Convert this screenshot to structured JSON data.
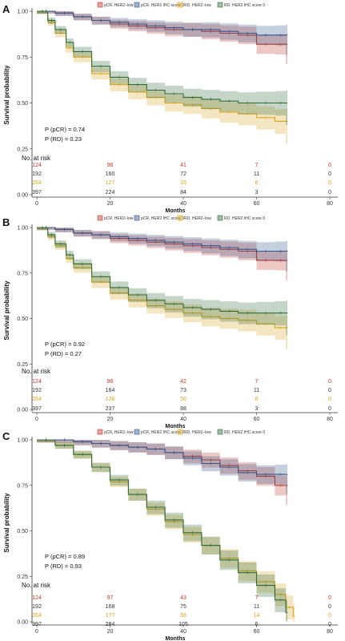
{
  "chart_data": [
    {
      "type": "line",
      "panel_label": "A",
      "ylabel": "Survival probability",
      "xlabel": "Months",
      "xlim": [
        0,
        80
      ],
      "ylim": [
        0,
        1
      ],
      "xticks": [
        "0",
        "20",
        "40",
        "60",
        "80"
      ],
      "yticks": [
        "0.00",
        "0.25",
        "0.50",
        "0.75",
        "1.00"
      ],
      "legend_position": "top",
      "series": [
        {
          "name": "pCR, HER2−low",
          "color": "#c0392b",
          "x": [
            0,
            5,
            10,
            15,
            20,
            25,
            30,
            35,
            40,
            45,
            50,
            55,
            60,
            65,
            68
          ],
          "y": [
            1.0,
            0.99,
            0.97,
            0.95,
            0.93,
            0.92,
            0.91,
            0.9,
            0.9,
            0.89,
            0.88,
            0.87,
            0.82,
            0.82,
            0.82
          ]
        },
        {
          "name": "pCR, HER2 IHC score 0",
          "color": "#34548a",
          "x": [
            0,
            5,
            10,
            15,
            20,
            25,
            30,
            35,
            40,
            45,
            50,
            55,
            60,
            65,
            68
          ],
          "y": [
            1.0,
            0.99,
            0.97,
            0.95,
            0.94,
            0.93,
            0.92,
            0.91,
            0.9,
            0.9,
            0.89,
            0.88,
            0.87,
            0.87,
            0.87
          ]
        },
        {
          "name": "RD, HER2−low",
          "color": "#d9a521",
          "x": [
            0,
            3,
            5,
            8,
            10,
            15,
            20,
            25,
            30,
            35,
            40,
            45,
            50,
            55,
            60,
            65,
            68
          ],
          "y": [
            1.0,
            0.94,
            0.88,
            0.8,
            0.75,
            0.66,
            0.6,
            0.56,
            0.53,
            0.5,
            0.49,
            0.47,
            0.45,
            0.44,
            0.42,
            0.4,
            0.4
          ]
        },
        {
          "name": "RD, HER2 IHC score 0",
          "color": "#2f6b3a",
          "x": [
            0,
            3,
            5,
            8,
            10,
            15,
            20,
            25,
            30,
            35,
            40,
            45,
            50,
            55,
            60,
            65,
            68
          ],
          "y": [
            1.0,
            0.95,
            0.9,
            0.83,
            0.78,
            0.7,
            0.64,
            0.6,
            0.57,
            0.55,
            0.53,
            0.52,
            0.51,
            0.5,
            0.5,
            0.5,
            0.5
          ]
        }
      ],
      "annotations": [
        "P (pCR) = 0.74",
        "P (RD) = 0.23"
      ],
      "risk_table": {
        "title": "No. at risk",
        "times": [
          0,
          20,
          40,
          60,
          80
        ],
        "rows": [
          {
            "color": "#c0392b",
            "values": [
              "124",
              "96",
              "41",
              "7",
              "0"
            ]
          },
          {
            "color": "#333333",
            "values": [
              "192",
              "160",
              "72",
              "11",
              "0"
            ]
          },
          {
            "color": "#d9a521",
            "values": [
              "264",
              "127",
              "33",
              "6",
              "0"
            ]
          },
          {
            "color": "#333333",
            "values": [
              "397",
              "224",
              "84",
              "3",
              "0"
            ]
          }
        ]
      }
    },
    {
      "type": "line",
      "panel_label": "B",
      "ylabel": "Survival probability",
      "xlabel": "Months",
      "xlim": [
        0,
        80
      ],
      "ylim": [
        0,
        1
      ],
      "xticks": [
        "0",
        "20",
        "40",
        "60",
        "80"
      ],
      "yticks": [
        "0.00",
        "0.25",
        "0.50",
        "0.75",
        "1.00"
      ],
      "legend_position": "top",
      "series": [
        {
          "name": "pCR, HER2−low",
          "color": "#c0392b",
          "x": [
            0,
            5,
            10,
            15,
            20,
            25,
            30,
            35,
            40,
            45,
            50,
            55,
            60,
            65,
            68
          ],
          "y": [
            1.0,
            0.99,
            0.97,
            0.96,
            0.94,
            0.93,
            0.92,
            0.91,
            0.9,
            0.89,
            0.88,
            0.87,
            0.82,
            0.82,
            0.82
          ]
        },
        {
          "name": "pCR, HER2 IHC score 0",
          "color": "#34548a",
          "x": [
            0,
            5,
            10,
            15,
            20,
            25,
            30,
            35,
            40,
            45,
            50,
            55,
            60,
            65,
            68
          ],
          "y": [
            1.0,
            0.99,
            0.97,
            0.96,
            0.95,
            0.94,
            0.93,
            0.92,
            0.91,
            0.9,
            0.89,
            0.88,
            0.87,
            0.87,
            0.87
          ]
        },
        {
          "name": "RD, HER2−low",
          "color": "#d9a521",
          "x": [
            0,
            3,
            5,
            8,
            10,
            15,
            20,
            25,
            30,
            35,
            40,
            45,
            50,
            55,
            60,
            65,
            68
          ],
          "y": [
            1.0,
            0.95,
            0.9,
            0.83,
            0.78,
            0.7,
            0.64,
            0.6,
            0.57,
            0.55,
            0.53,
            0.51,
            0.5,
            0.49,
            0.47,
            0.45,
            0.45
          ]
        },
        {
          "name": "RD, HER2 IHC score 0",
          "color": "#2f6b3a",
          "x": [
            0,
            3,
            5,
            8,
            10,
            15,
            20,
            25,
            30,
            35,
            40,
            45,
            50,
            55,
            60,
            65,
            68
          ],
          "y": [
            1.0,
            0.96,
            0.91,
            0.85,
            0.8,
            0.73,
            0.67,
            0.63,
            0.6,
            0.58,
            0.56,
            0.55,
            0.54,
            0.53,
            0.53,
            0.53,
            0.53
          ]
        }
      ],
      "annotations": [
        "P (pCR) = 0.92",
        "P (RD) = 0.27"
      ],
      "risk_table": {
        "title": "No. at risk",
        "times": [
          0,
          20,
          40,
          60,
          80
        ],
        "rows": [
          {
            "color": "#c0392b",
            "values": [
              "124",
              "96",
              "42",
              "7",
              "0"
            ]
          },
          {
            "color": "#333333",
            "values": [
              "192",
              "164",
              "73",
              "11",
              "0"
            ]
          },
          {
            "color": "#d9a521",
            "values": [
              "264",
              "138",
              "50",
              "8",
              "0"
            ]
          },
          {
            "color": "#333333",
            "values": [
              "397",
              "237",
              "88",
              "3",
              "0"
            ]
          }
        ]
      }
    },
    {
      "type": "line",
      "panel_label": "C",
      "ylabel": "Survival probability",
      "xlabel": "Months",
      "xlim": [
        0,
        80
      ],
      "ylim": [
        0,
        1
      ],
      "xticks": [
        "0",
        "20",
        "40",
        "60",
        "80"
      ],
      "yticks": [
        "0.00",
        "0.25",
        "0.50",
        "0.75",
        "1.00"
      ],
      "legend_position": "top",
      "series": [
        {
          "name": "pCR, HER2−low",
          "color": "#c0392b",
          "x": [
            0,
            5,
            10,
            15,
            20,
            25,
            30,
            35,
            40,
            45,
            50,
            55,
            60,
            65,
            68
          ],
          "y": [
            1.0,
            1.0,
            0.99,
            0.98,
            0.97,
            0.96,
            0.95,
            0.93,
            0.91,
            0.89,
            0.86,
            0.83,
            0.8,
            0.75,
            0.75
          ]
        },
        {
          "name": "pCR, HER2 IHC score 0",
          "color": "#34548a",
          "x": [
            0,
            5,
            10,
            15,
            20,
            25,
            30,
            35,
            40,
            45,
            50,
            55,
            60,
            65,
            68
          ],
          "y": [
            1.0,
            1.0,
            0.99,
            0.98,
            0.97,
            0.96,
            0.95,
            0.93,
            0.9,
            0.87,
            0.85,
            0.82,
            0.81,
            0.81,
            0.81
          ]
        },
        {
          "name": "RD, HER2−low",
          "color": "#d9a521",
          "x": [
            0,
            5,
            10,
            15,
            20,
            25,
            30,
            35,
            40,
            45,
            50,
            55,
            60,
            65,
            68,
            70
          ],
          "y": [
            1.0,
            0.97,
            0.92,
            0.85,
            0.77,
            0.7,
            0.62,
            0.55,
            0.48,
            0.42,
            0.35,
            0.28,
            0.22,
            0.15,
            0.08,
            0.03
          ]
        },
        {
          "name": "RD, HER2 IHC score 0",
          "color": "#2f6b3a",
          "x": [
            0,
            5,
            10,
            15,
            20,
            25,
            30,
            35,
            40,
            45,
            50,
            55,
            60,
            65,
            68
          ],
          "y": [
            1.0,
            0.97,
            0.92,
            0.85,
            0.78,
            0.7,
            0.63,
            0.56,
            0.49,
            0.42,
            0.34,
            0.27,
            0.2,
            0.12,
            0.05
          ]
        }
      ],
      "annotations": [
        "P (pCR) = 0.89",
        "P (RD) = 0.93"
      ],
      "risk_table": {
        "title": "No. at risk",
        "times": [
          0,
          20,
          40,
          60,
          80
        ],
        "rows": [
          {
            "color": "#c0392b",
            "values": [
              "124",
              "97",
              "43",
              "7",
              "0"
            ]
          },
          {
            "color": "#333333",
            "values": [
              "192",
              "168",
              "75",
              "11",
              "0"
            ]
          },
          {
            "color": "#d9a521",
            "values": [
              "264",
              "177",
              "68",
              "14",
              "0"
            ]
          },
          {
            "color": "#333333",
            "values": [
              "397",
              "284",
              "105",
              "6",
              "0"
            ]
          }
        ]
      }
    }
  ]
}
